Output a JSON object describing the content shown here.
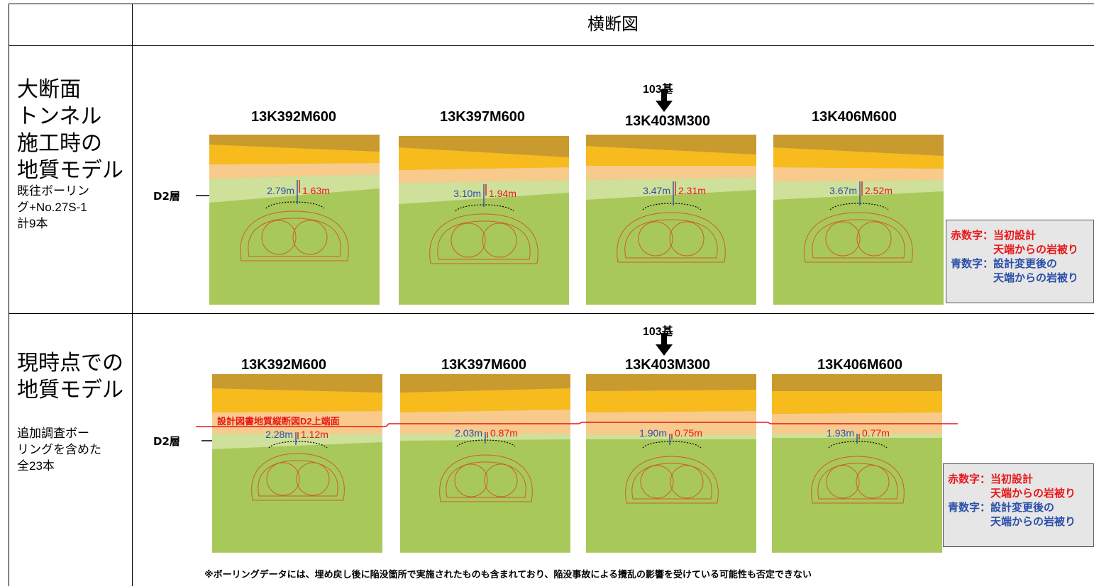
{
  "header": {
    "title": "横断図"
  },
  "rows": [
    {
      "label_lines": [
        "大断面",
        "トンネル",
        "施工時の",
        "地質モデル"
      ],
      "sub_lines": [
        "既往ボーリン",
        "グ+No.27S-1",
        "計9本"
      ],
      "marker": "103基",
      "layer_label": "D2層",
      "sections": [
        {
          "station": "13K392M600",
          "blue": "2.79m",
          "red": "1.63m"
        },
        {
          "station": "13K397M600",
          "blue": "3.10m",
          "red": "1.94m"
        },
        {
          "station": "13K403M300",
          "blue": "3.47m",
          "red": "2.31m"
        },
        {
          "station": "13K406M600",
          "blue": "3.67m",
          "red": "2.52m"
        }
      ]
    },
    {
      "label_lines": [
        "現時点での",
        "地質モデル"
      ],
      "sub_lines": [
        "追加調査ボー",
        "リングを含めた",
        "全23本"
      ],
      "marker": "103基",
      "layer_label": "D2層",
      "red_line_label": "設計図書地質縦断図D2上端面",
      "sections": [
        {
          "station": "13K392M600",
          "blue": "2.28m",
          "red": "1.12m"
        },
        {
          "station": "13K397M600",
          "blue": "2.03m",
          "red": "0.87m"
        },
        {
          "station": "13K403M300",
          "blue": "1.90m",
          "red": "0.75m"
        },
        {
          "station": "13K406M600",
          "blue": "1.93m",
          "red": "0.77m"
        }
      ]
    }
  ],
  "legend": {
    "red_title": "赤数字：当初設計",
    "red_sub": "天端からの岩被り",
    "blue_title": "青数字：設計変更後の",
    "blue_sub": "天端からの岩被り"
  },
  "footnote": "※ボーリングデータには、埋め戻し後に陥没箇所で実施されたものも含まれており、陥没事故による攪乱の影響を受けている可能性も否定できない",
  "colors": {
    "dark_layer": "#c99a2e",
    "yellow_layer": "#f7bb1d",
    "orange_layer": "#f8ca8c",
    "light_green": "#cfe09a",
    "green": "#a9c85a",
    "red": "#e8161a",
    "blue": "#2b4fa8"
  }
}
